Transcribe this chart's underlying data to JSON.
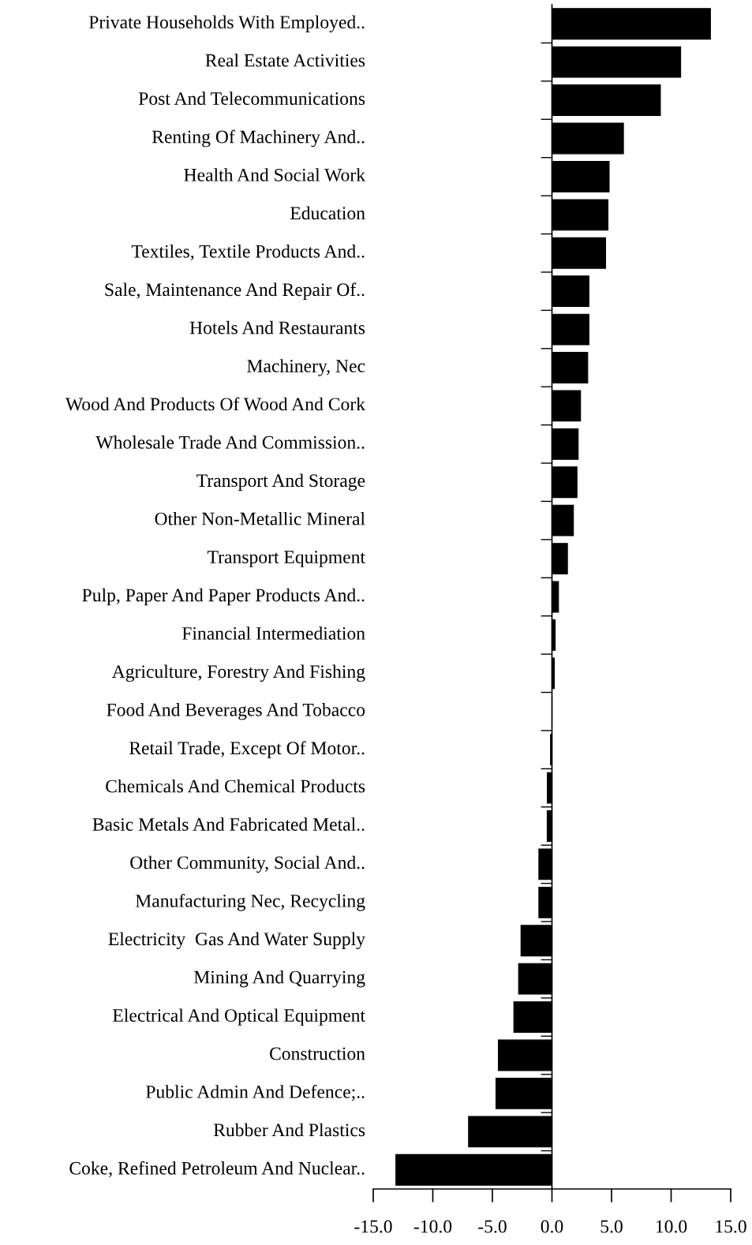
{
  "chart_data": {
    "type": "bar",
    "orientation": "horizontal",
    "categories": [
      "Private Households With Employed..",
      "Real Estate Activities",
      "Post And Telecommunications",
      "Renting Of Machinery And..",
      "Health And Social Work",
      "Education",
      "Textiles, Textile Products And..",
      "Sale, Maintenance And Repair Of..",
      "Hotels And Restaurants",
      "Machinery, Nec",
      "Wood And Products Of Wood And Cork",
      "Wholesale Trade And Commission..",
      "Transport And Storage",
      "Other Non-Metallic Mineral",
      "Transport Equipment",
      "Pulp, Paper And Paper Products And..",
      "Financial Intermediation",
      "Agriculture, Forestry And Fishing",
      "Food And Beverages And Tobacco",
      "Retail Trade, Except Of Motor..",
      "Chemicals And Chemical Products",
      "Basic Metals And Fabricated Metal..",
      "Other Community, Social And..",
      "Manufacturing Nec, Recycling",
      "Electricity  Gas And Water Supply",
      "Mining And Quarrying",
      "Electrical And Optical Equipment",
      "Construction",
      "Public Admin And Defence;..",
      "Rubber And Plastics",
      "Coke, Refined Petroleum And Nuclear.."
    ],
    "values": [
      13.3,
      10.8,
      9.1,
      6.0,
      4.8,
      4.7,
      4.5,
      3.1,
      3.1,
      3.0,
      2.4,
      2.2,
      2.1,
      1.8,
      1.3,
      0.55,
      0.27,
      0.2,
      0.0,
      -0.12,
      -0.39,
      -0.4,
      -1.1,
      -1.1,
      -2.6,
      -2.8,
      -3.2,
      -4.5,
      -4.7,
      -7.0,
      -13.1
    ],
    "color": "#000000",
    "xlim": [
      -15,
      15
    ],
    "xticks": [
      {
        "value": -15,
        "label": "-15.0"
      },
      {
        "value": -10,
        "label": "-10.0"
      },
      {
        "value": -5,
        "label": "-5.0"
      },
      {
        "value": 0,
        "label": "0.0"
      },
      {
        "value": 5,
        "label": "5.0"
      },
      {
        "value": 10,
        "label": "10.0"
      },
      {
        "value": 15,
        "label": "15.0"
      }
    ],
    "legend": false
  }
}
